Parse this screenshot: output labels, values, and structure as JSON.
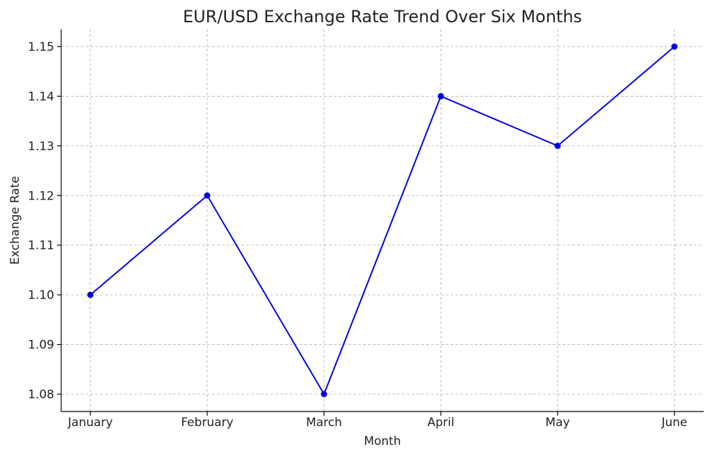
{
  "chart_data": {
    "type": "line",
    "title": "EUR/USD Exchange Rate Trend Over Six Months",
    "xlabel": "Month",
    "ylabel": "Exchange Rate",
    "categories": [
      "January",
      "February",
      "March",
      "April",
      "May",
      "June"
    ],
    "series": [
      {
        "values": [
          1.1,
          1.12,
          1.08,
          1.14,
          1.13,
          1.15
        ],
        "color": "#0000dd",
        "marker": "circle"
      }
    ],
    "yticks": [
      "1.08",
      "1.09",
      "1.10",
      "1.11",
      "1.12",
      "1.13",
      "1.14",
      "1.15"
    ],
    "ylim": [
      1.0765,
      1.1535
    ],
    "grid": true,
    "legend": "none"
  }
}
